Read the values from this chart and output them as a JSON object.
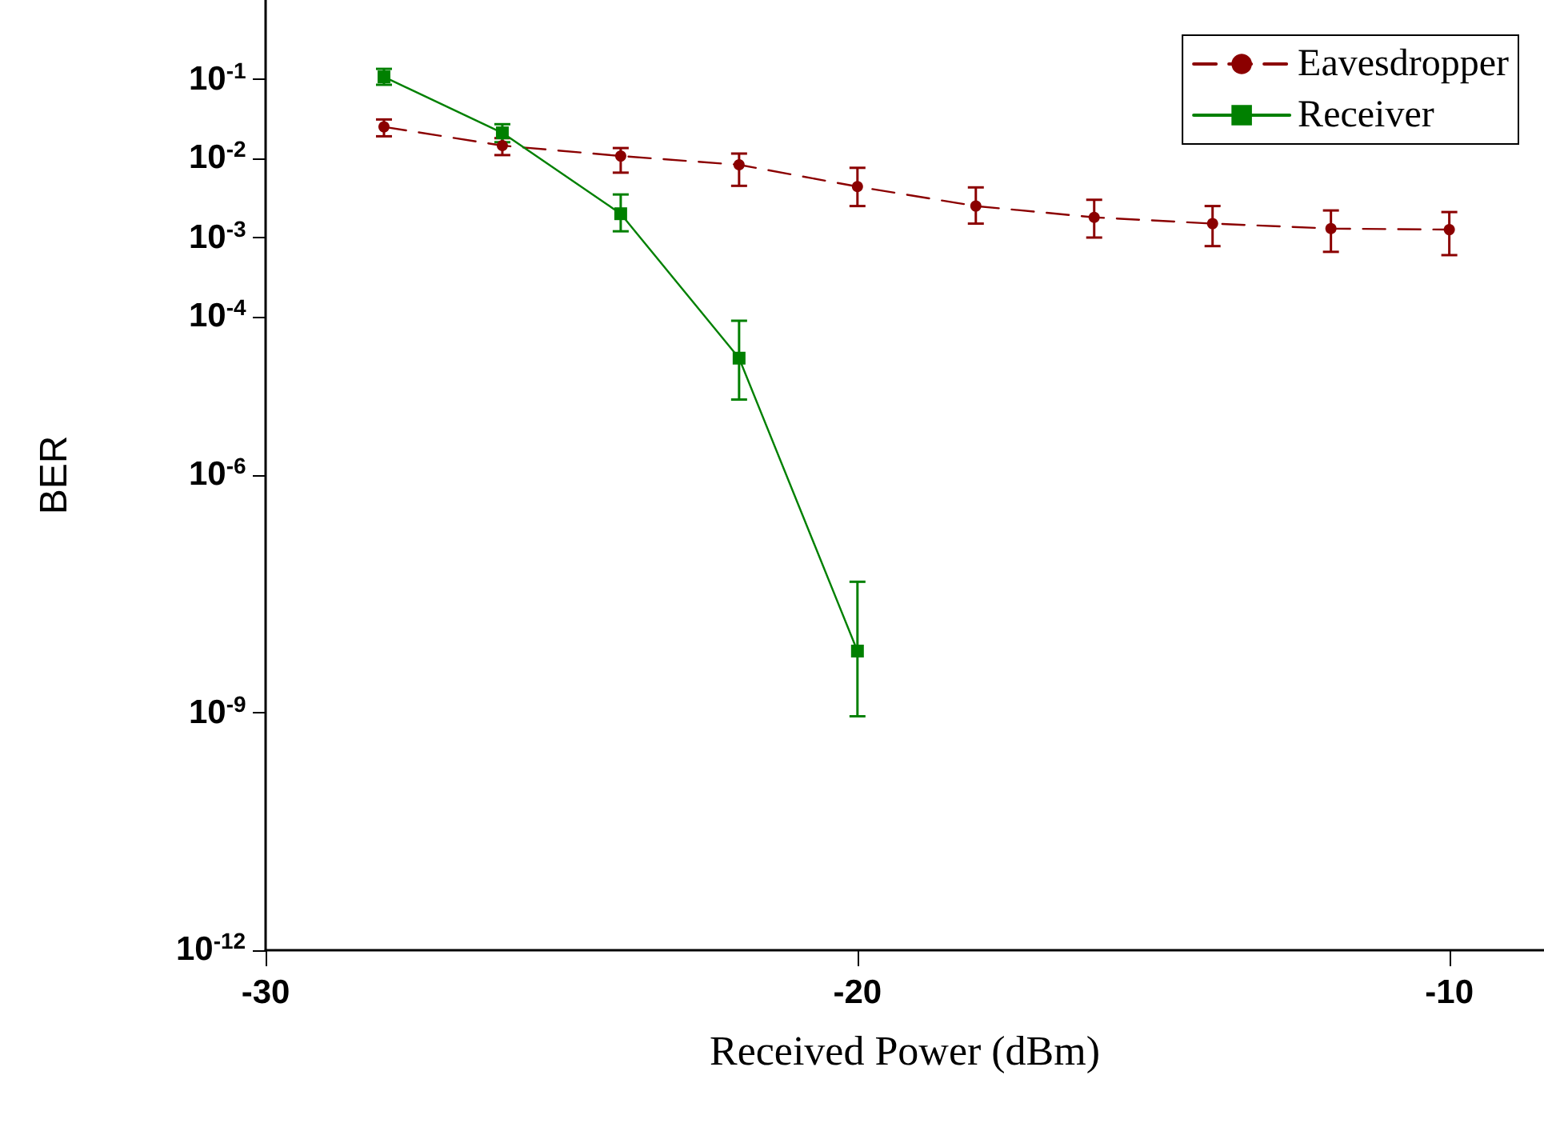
{
  "chart_data": {
    "type": "line",
    "xlabel": "Received Power (dBm)",
    "ylabel": "BER",
    "log": "y",
    "grid": false,
    "legend": "top right",
    "xlim": [
      -30,
      -8.4
    ],
    "xticks": [
      -30,
      -20,
      -10
    ],
    "ylim": [
      1e-12,
      1
    ],
    "yticks": [
      {
        "value": 0.1,
        "label": "10$^{-1}$"
      },
      {
        "value": 0.01,
        "label": "10$^{-2}$"
      },
      {
        "value": 0.001,
        "label": "10$^{-3}$"
      },
      {
        "value": 0.0001,
        "label": "10$^{-4}$"
      },
      {
        "value": 1e-06,
        "label": "10$^{-6}$"
      },
      {
        "value": 1e-09,
        "label": "10$^{-9}$"
      },
      {
        "value": 1e-12,
        "label": "10$^{-12}$"
      }
    ],
    "series": [
      {
        "name": "Eavesdropper",
        "color": "#8b0000",
        "marker": "circle",
        "line_style": "dashed",
        "x": [
          -28,
          -26,
          -24,
          -22,
          -20,
          -18,
          -16,
          -14,
          -12,
          -10
        ],
        "values": [
          0.025,
          0.0145,
          0.0107,
          0.0083,
          0.0044,
          0.0025,
          0.0018,
          0.0015,
          0.0013,
          0.00126
        ],
        "errors": [
          [
            0.019,
            0.031
          ],
          [
            0.011,
            0.018
          ],
          [
            0.0066,
            0.0135
          ],
          [
            0.0045,
            0.0115
          ],
          [
            0.0025,
            0.0076
          ],
          [
            0.0015,
            0.0043
          ],
          [
            0.001,
            0.003
          ],
          [
            0.00078,
            0.0025
          ],
          [
            0.00066,
            0.0022
          ],
          [
            0.0006,
            0.0021
          ]
        ]
      },
      {
        "name": "Receiver",
        "color": "#008000",
        "marker": "square",
        "line_style": "solid",
        "x": [
          -28,
          -26,
          -24,
          -22,
          -20
        ],
        "values": [
          0.107,
          0.021,
          0.002,
          3e-05,
          6e-09
        ],
        "errors": [
          [
            0.085,
            0.135
          ],
          [
            0.016,
            0.027
          ],
          [
            0.0012,
            0.0035
          ],
          [
            9e-06,
            8.9e-05
          ],
          [
            9e-10,
            4.5e-08
          ]
        ]
      }
    ]
  }
}
